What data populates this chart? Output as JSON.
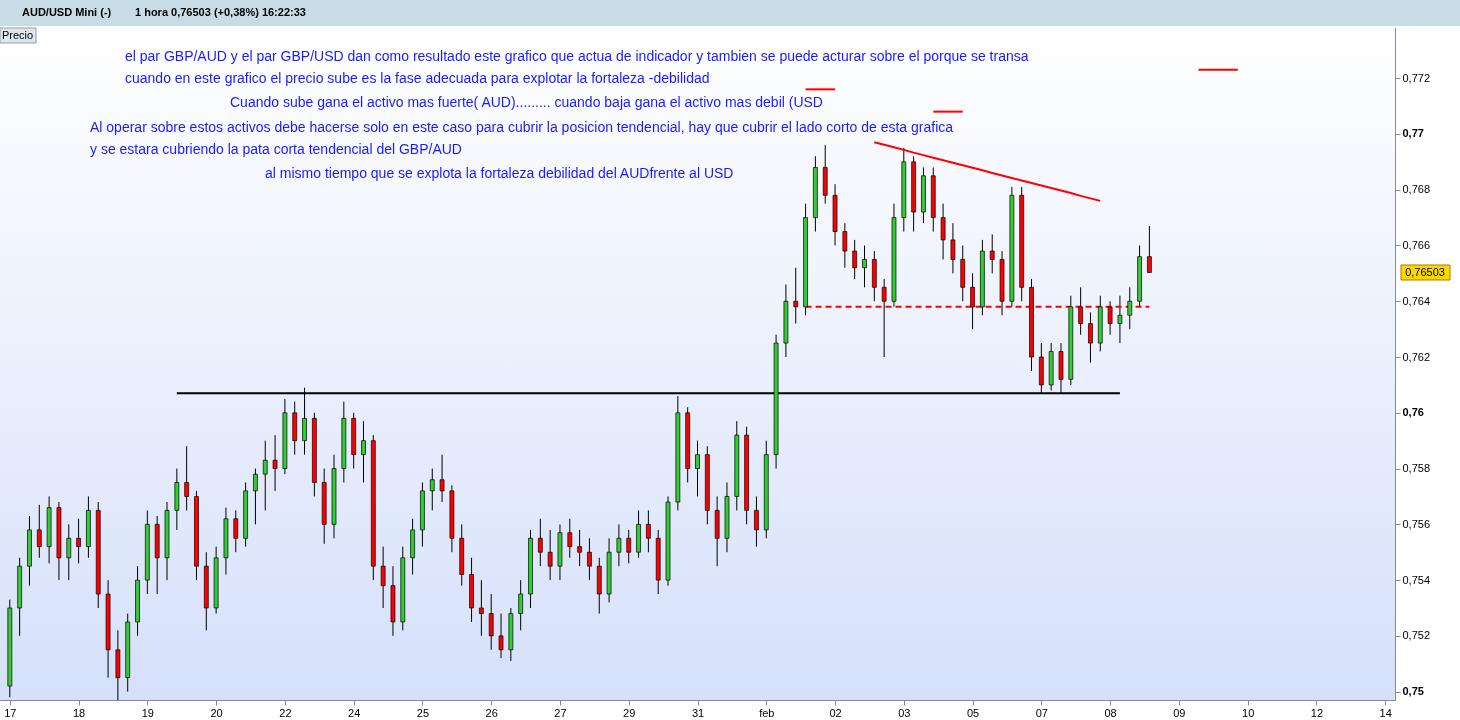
{
  "chart_data": {
    "type": "candlestick",
    "title": "AUD/USD Mini (-)",
    "subtitle": "1 hora   0,76503 (+0,38%)   16:22:33",
    "ylabel": "Precio",
    "categories": [
      "17",
      null,
      null,
      null,
      null,
      null,
      null,
      "18",
      null,
      null,
      null,
      null,
      null,
      null,
      "19",
      null,
      null,
      null,
      null,
      null,
      null,
      "20",
      null,
      null,
      null,
      null,
      null,
      null,
      "22",
      null,
      null,
      null,
      null,
      null,
      null,
      "24",
      null,
      null,
      null,
      null,
      null,
      null,
      "25",
      null,
      null,
      null,
      null,
      null,
      null,
      "26",
      null,
      null,
      null,
      null,
      null,
      null,
      "27",
      null,
      null,
      null,
      null,
      null,
      null,
      "29",
      null,
      null,
      null,
      null,
      null,
      null,
      "31",
      null,
      null,
      null,
      null,
      null,
      null,
      "feb",
      null,
      null,
      null,
      null,
      null,
      null,
      "02",
      null,
      null,
      null,
      null,
      null,
      null,
      "03",
      null,
      null,
      null,
      null,
      null,
      null,
      "05",
      null,
      null,
      null,
      null,
      null,
      null,
      "07",
      null,
      null,
      null,
      null,
      null,
      null,
      "08",
      null,
      null,
      null,
      null,
      null,
      null,
      "09",
      null,
      null,
      null,
      null,
      null,
      null,
      "10",
      null,
      null,
      null,
      null,
      null,
      null,
      "12",
      null,
      null,
      null,
      null,
      null,
      null,
      "14"
    ],
    "ohlc": [
      [
        0.7502,
        0.7533,
        0.7498,
        0.753
      ],
      [
        0.753,
        0.7548,
        0.752,
        0.7545
      ],
      [
        0.7545,
        0.7563,
        0.7538,
        0.7558
      ],
      [
        0.7558,
        0.7567,
        0.7548,
        0.7552
      ],
      [
        0.7552,
        0.757,
        0.7546,
        0.7566
      ],
      [
        0.7566,
        0.7568,
        0.754,
        0.7548
      ],
      [
        0.7548,
        0.756,
        0.754,
        0.7555
      ],
      [
        0.7555,
        0.7562,
        0.7546,
        0.7552
      ],
      [
        0.7552,
        0.757,
        0.7548,
        0.7565
      ],
      [
        0.7565,
        0.7568,
        0.753,
        0.7535
      ],
      [
        0.7535,
        0.754,
        0.7505,
        0.7515
      ],
      [
        0.7515,
        0.7522,
        0.7497,
        0.7505
      ],
      [
        0.7505,
        0.7528,
        0.75,
        0.7525
      ],
      [
        0.7525,
        0.7545,
        0.752,
        0.754
      ],
      [
        0.754,
        0.7565,
        0.7535,
        0.756
      ],
      [
        0.756,
        0.7563,
        0.7535,
        0.7548
      ],
      [
        0.7548,
        0.7568,
        0.754,
        0.7565
      ],
      [
        0.7565,
        0.758,
        0.7558,
        0.7575
      ],
      [
        0.7575,
        0.7588,
        0.7565,
        0.757
      ],
      [
        0.757,
        0.7572,
        0.754,
        0.7545
      ],
      [
        0.7545,
        0.755,
        0.7522,
        0.753
      ],
      [
        0.753,
        0.7552,
        0.7528,
        0.7548
      ],
      [
        0.7548,
        0.7566,
        0.7542,
        0.7562
      ],
      [
        0.7562,
        0.7565,
        0.755,
        0.7555
      ],
      [
        0.7555,
        0.7575,
        0.7552,
        0.7572
      ],
      [
        0.7572,
        0.758,
        0.756,
        0.7578
      ],
      [
        0.7578,
        0.759,
        0.7565,
        0.7583
      ],
      [
        0.7583,
        0.7592,
        0.7572,
        0.758
      ],
      [
        0.758,
        0.7605,
        0.7578,
        0.76
      ],
      [
        0.76,
        0.7604,
        0.7585,
        0.759
      ],
      [
        0.759,
        0.7609,
        0.7585,
        0.7598
      ],
      [
        0.7598,
        0.76,
        0.757,
        0.7575
      ],
      [
        0.7575,
        0.758,
        0.7553,
        0.756
      ],
      [
        0.756,
        0.7585,
        0.7555,
        0.758
      ],
      [
        0.758,
        0.7604,
        0.7575,
        0.7598
      ],
      [
        0.7598,
        0.76,
        0.758,
        0.7585
      ],
      [
        0.7585,
        0.7597,
        0.7575,
        0.759
      ],
      [
        0.759,
        0.7592,
        0.754,
        0.7545
      ],
      [
        0.7545,
        0.7552,
        0.753,
        0.7538
      ],
      [
        0.7538,
        0.7545,
        0.752,
        0.7525
      ],
      [
        0.7525,
        0.7552,
        0.7522,
        0.7548
      ],
      [
        0.7548,
        0.7562,
        0.7542,
        0.7558
      ],
      [
        0.7558,
        0.7575,
        0.7552,
        0.7572
      ],
      [
        0.7572,
        0.758,
        0.7565,
        0.7576
      ],
      [
        0.7576,
        0.7585,
        0.7568,
        0.7572
      ],
      [
        0.7572,
        0.7574,
        0.755,
        0.7555
      ],
      [
        0.7555,
        0.756,
        0.7538,
        0.7542
      ],
      [
        0.7542,
        0.7548,
        0.7525,
        0.753
      ],
      [
        0.753,
        0.754,
        0.752,
        0.7528
      ],
      [
        0.7528,
        0.7535,
        0.7515,
        0.752
      ],
      [
        0.752,
        0.7528,
        0.7512,
        0.7515
      ],
      [
        0.7515,
        0.753,
        0.7511,
        0.7528
      ],
      [
        0.7528,
        0.754,
        0.7522,
        0.7535
      ],
      [
        0.7535,
        0.7558,
        0.753,
        0.7555
      ],
      [
        0.7555,
        0.7562,
        0.7545,
        0.755
      ],
      [
        0.755,
        0.7558,
        0.754,
        0.7545
      ],
      [
        0.7545,
        0.756,
        0.754,
        0.7557
      ],
      [
        0.7557,
        0.7562,
        0.7548,
        0.7552
      ],
      [
        0.7552,
        0.7558,
        0.7545,
        0.755
      ],
      [
        0.755,
        0.7555,
        0.754,
        0.7545
      ],
      [
        0.7545,
        0.7548,
        0.7528,
        0.7535
      ],
      [
        0.7535,
        0.7555,
        0.7532,
        0.755
      ],
      [
        0.755,
        0.756,
        0.7545,
        0.7555
      ],
      [
        0.7555,
        0.7558,
        0.7546,
        0.755
      ],
      [
        0.755,
        0.7565,
        0.7548,
        0.756
      ],
      [
        0.756,
        0.7565,
        0.755,
        0.7555
      ],
      [
        0.7555,
        0.7558,
        0.7535,
        0.754
      ],
      [
        0.754,
        0.757,
        0.7538,
        0.7568
      ],
      [
        0.7568,
        0.7606,
        0.7565,
        0.76
      ],
      [
        0.76,
        0.7602,
        0.7575,
        0.758
      ],
      [
        0.758,
        0.759,
        0.757,
        0.7585
      ],
      [
        0.7585,
        0.7588,
        0.756,
        0.7565
      ],
      [
        0.7565,
        0.757,
        0.7545,
        0.7555
      ],
      [
        0.7555,
        0.7575,
        0.755,
        0.757
      ],
      [
        0.757,
        0.7597,
        0.7565,
        0.7592
      ],
      [
        0.7592,
        0.7595,
        0.756,
        0.7565
      ],
      [
        0.7565,
        0.757,
        0.7552,
        0.7558
      ],
      [
        0.7558,
        0.759,
        0.7555,
        0.7585
      ],
      [
        0.7585,
        0.7628,
        0.758,
        0.7625
      ],
      [
        0.7625,
        0.7646,
        0.762,
        0.764
      ],
      [
        0.764,
        0.7652,
        0.7632,
        0.7638
      ],
      [
        0.7638,
        0.7675,
        0.7635,
        0.767
      ],
      [
        0.767,
        0.7692,
        0.7665,
        0.7688
      ],
      [
        0.7688,
        0.7696,
        0.7675,
        0.7678
      ],
      [
        0.7678,
        0.7682,
        0.766,
        0.7665
      ],
      [
        0.7665,
        0.7668,
        0.7652,
        0.7658
      ],
      [
        0.7658,
        0.7662,
        0.7648,
        0.7652
      ],
      [
        0.7652,
        0.766,
        0.7645,
        0.7655
      ],
      [
        0.7655,
        0.7658,
        0.764,
        0.7645
      ],
      [
        0.7645,
        0.7648,
        0.762,
        0.764
      ],
      [
        0.764,
        0.7675,
        0.7638,
        0.767
      ],
      [
        0.767,
        0.7695,
        0.7665,
        0.769
      ],
      [
        0.769,
        0.7692,
        0.7665,
        0.7672
      ],
      [
        0.7672,
        0.7688,
        0.7668,
        0.7685
      ],
      [
        0.7685,
        0.7688,
        0.7665,
        0.767
      ],
      [
        0.767,
        0.7675,
        0.7655,
        0.7662
      ],
      [
        0.7662,
        0.7668,
        0.765,
        0.7655
      ],
      [
        0.7655,
        0.766,
        0.764,
        0.7645
      ],
      [
        0.7645,
        0.765,
        0.763,
        0.7638
      ],
      [
        0.7638,
        0.7662,
        0.7635,
        0.7658
      ],
      [
        0.7658,
        0.7664,
        0.765,
        0.7655
      ],
      [
        0.7655,
        0.7658,
        0.7635,
        0.764
      ],
      [
        0.764,
        0.7681,
        0.7638,
        0.7678
      ],
      [
        0.7678,
        0.7681,
        0.764,
        0.7645
      ],
      [
        0.7645,
        0.7648,
        0.7615,
        0.762
      ],
      [
        0.762,
        0.7625,
        0.7607,
        0.761
      ],
      [
        0.761,
        0.7625,
        0.7608,
        0.7622
      ],
      [
        0.7622,
        0.7625,
        0.7607,
        0.7612
      ],
      [
        0.7612,
        0.7642,
        0.761,
        0.7638
      ],
      [
        0.7638,
        0.7645,
        0.7628,
        0.7632
      ],
      [
        0.7632,
        0.7636,
        0.7618,
        0.7625
      ],
      [
        0.7625,
        0.7642,
        0.7622,
        0.7638
      ],
      [
        0.7638,
        0.764,
        0.7628,
        0.7632
      ],
      [
        0.7632,
        0.7642,
        0.7625,
        0.7635
      ],
      [
        0.7635,
        0.7645,
        0.763,
        0.764
      ],
      [
        0.764,
        0.766,
        0.7638,
        0.7656
      ],
      [
        0.7656,
        0.7667,
        0.76503,
        0.76503
      ],
      null,
      null,
      null,
      null,
      null,
      null,
      null,
      null,
      null,
      null,
      null,
      null,
      null,
      null,
      null,
      null,
      null,
      null,
      null,
      null,
      null,
      null,
      null,
      null
    ],
    "series": [
      {
        "type": "line",
        "color": "#000000",
        "line_style": "solid",
        "values": [
          null,
          null,
          null,
          null,
          null,
          null,
          null,
          null,
          null,
          null,
          null,
          null,
          null,
          null,
          null,
          null,
          null,
          0.7607,
          0.7607,
          0.7607,
          0.7607,
          0.7607,
          0.7607,
          0.7607,
          0.7607,
          0.7607,
          0.7607,
          0.7607,
          0.7607,
          0.7607,
          0.7607,
          0.7607,
          0.7607,
          0.7607,
          0.7607,
          0.7607,
          0.7607,
          0.7607,
          0.7607,
          0.7607,
          0.7607,
          0.7607,
          0.7607,
          0.7607,
          0.7607,
          0.7607,
          0.7607,
          0.7607,
          0.7607,
          0.7607,
          0.7607,
          0.7607,
          0.7607,
          0.7607,
          0.7607,
          0.7607,
          0.7607,
          0.7607,
          0.7607,
          0.7607,
          0.7607,
          0.7607,
          0.7607,
          0.7607,
          0.7607,
          0.7607,
          0.7607,
          0.7607,
          0.7607,
          0.7607,
          0.7607,
          0.7607,
          0.7607,
          0.7607,
          0.7607,
          0.7607,
          0.7607,
          0.7607,
          0.7607,
          0.7607,
          0.7607,
          0.7607,
          0.7607,
          0.7607,
          0.7607,
          0.7607,
          0.7607,
          0.7607,
          0.7607,
          0.7607,
          0.7607,
          0.7607,
          0.7607,
          0.7607,
          0.7607,
          0.7607,
          0.7607,
          0.7607,
          0.7607,
          0.7607,
          0.7607,
          0.7607,
          0.7607,
          0.7607,
          0.7607,
          0.7607,
          0.7607,
          0.7607,
          0.7607,
          0.7607,
          0.7607,
          0.7607,
          0.7607,
          0.7607,
          null,
          null,
          null,
          null,
          null,
          null,
          null,
          null,
          null,
          null,
          null,
          null,
          null,
          null,
          null,
          null,
          null,
          null,
          null,
          null,
          null,
          null,
          null,
          null,
          null,
          null,
          null
        ]
      },
      {
        "type": "line",
        "color": "#ff0000",
        "line_style": "solid",
        "values": [
          null,
          null,
          null,
          null,
          null,
          null,
          null,
          null,
          null,
          null,
          null,
          null,
          null,
          null,
          null,
          null,
          null,
          null,
          null,
          null,
          null,
          null,
          null,
          null,
          null,
          null,
          null,
          null,
          null,
          null,
          null,
          null,
          null,
          null,
          null,
          null,
          null,
          null,
          null,
          null,
          null,
          null,
          null,
          null,
          null,
          null,
          null,
          null,
          null,
          null,
          null,
          null,
          null,
          null,
          null,
          null,
          null,
          null,
          null,
          null,
          null,
          null,
          null,
          null,
          null,
          null,
          null,
          null,
          null,
          null,
          null,
          null,
          null,
          null,
          null,
          null,
          null,
          null,
          null,
          null,
          null,
          null,
          null,
          null,
          null,
          null,
          null,
          null,
          0.7697,
          0.76961,
          0.76952,
          0.76943,
          0.76933,
          0.76924,
          0.76915,
          0.76906,
          0.76897,
          0.76888,
          0.76879,
          0.7687,
          0.7686,
          0.76851,
          0.76842,
          0.76833,
          0.76824,
          0.76815,
          0.76806,
          0.76797,
          0.76788,
          0.76778,
          0.76769,
          0.7676,
          null,
          null,
          null,
          null,
          null,
          null,
          null,
          null,
          null,
          null,
          null,
          null,
          null,
          null,
          null,
          null,
          null,
          null,
          null,
          null,
          null,
          null,
          null,
          null,
          null,
          null,
          null,
          null,
          null
        ]
      },
      {
        "type": "line",
        "color": "#ff0000",
        "line_style": "dashed",
        "values": [
          null,
          null,
          null,
          null,
          null,
          null,
          null,
          null,
          null,
          null,
          null,
          null,
          null,
          null,
          null,
          null,
          null,
          null,
          null,
          null,
          null,
          null,
          null,
          null,
          null,
          null,
          null,
          null,
          null,
          null,
          null,
          null,
          null,
          null,
          null,
          null,
          null,
          null,
          null,
          null,
          null,
          null,
          null,
          null,
          null,
          null,
          null,
          null,
          null,
          null,
          null,
          null,
          null,
          null,
          null,
          null,
          null,
          null,
          null,
          null,
          null,
          null,
          null,
          null,
          null,
          null,
          null,
          null,
          null,
          null,
          null,
          null,
          null,
          null,
          null,
          null,
          null,
          null,
          null,
          null,
          null,
          0.7638,
          0.7638,
          0.7638,
          0.7638,
          0.7638,
          0.7638,
          0.7638,
          0.7638,
          0.7638,
          0.7638,
          0.7638,
          0.7638,
          0.7638,
          0.7638,
          0.7638,
          0.7638,
          0.7638,
          0.7638,
          0.7638,
          0.7638,
          0.7638,
          0.7638,
          0.7638,
          0.7638,
          0.7638,
          0.7638,
          0.7638,
          0.7638,
          0.7638,
          0.7638,
          0.7638,
          0.7638,
          0.7638,
          0.7638,
          0.7638,
          0.7638,
          null,
          null,
          null,
          null,
          null,
          null,
          null,
          null,
          null,
          null,
          null,
          null,
          null,
          null,
          null,
          null,
          null,
          null,
          null,
          null,
          null,
          null,
          null,
          null
        ]
      },
      {
        "type": "line",
        "color": "#ff0000",
        "line_style": "solid",
        "values": [
          null,
          null,
          null,
          null,
          null,
          null,
          null,
          null,
          null,
          null,
          null,
          null,
          null,
          null,
          null,
          null,
          null,
          null,
          null,
          null,
          null,
          null,
          null,
          null,
          null,
          null,
          null,
          null,
          null,
          null,
          null,
          null,
          null,
          null,
          null,
          null,
          null,
          null,
          null,
          null,
          null,
          null,
          null,
          null,
          null,
          null,
          null,
          null,
          null,
          null,
          null,
          null,
          null,
          null,
          null,
          null,
          null,
          null,
          null,
          null,
          null,
          null,
          null,
          null,
          null,
          null,
          null,
          null,
          null,
          null,
          null,
          null,
          null,
          null,
          null,
          null,
          null,
          null,
          null,
          null,
          null,
          null,
          null,
          null,
          null,
          null,
          null,
          null,
          null,
          null,
          null,
          null,
          null,
          null,
          null,
          null,
          null,
          null,
          null,
          null,
          null,
          null,
          null,
          null,
          null,
          null,
          null,
          null,
          null,
          null,
          null,
          null,
          null,
          null,
          null,
          null,
          null,
          null,
          null,
          null,
          null,
          0.7723,
          0.7723,
          0.7723,
          0.7723,
          0.7723,
          null,
          null,
          null,
          null,
          null,
          null,
          null,
          null,
          null,
          null,
          null,
          null,
          null,
          null,
          null
        ]
      },
      {
        "type": "line",
        "color": "#ff0000",
        "line_style": "solid",
        "values": [
          null,
          null,
          null,
          null,
          null,
          null,
          null,
          null,
          null,
          null,
          null,
          null,
          null,
          null,
          null,
          null,
          null,
          null,
          null,
          null,
          null,
          null,
          null,
          null,
          null,
          null,
          null,
          null,
          null,
          null,
          null,
          null,
          null,
          null,
          null,
          null,
          null,
          null,
          null,
          null,
          null,
          null,
          null,
          null,
          null,
          null,
          null,
          null,
          null,
          null,
          null,
          null,
          null,
          null,
          null,
          null,
          null,
          null,
          null,
          null,
          null,
          null,
          null,
          null,
          null,
          null,
          null,
          null,
          null,
          null,
          null,
          null,
          null,
          null,
          null,
          null,
          null,
          null,
          null,
          null,
          null,
          0.7716,
          0.7716,
          0.7716,
          0.7716,
          null,
          null,
          null,
          null,
          null,
          null,
          null,
          null,
          null,
          null,
          null,
          null,
          null,
          null,
          null,
          null,
          null,
          null,
          null,
          null,
          null,
          null,
          null,
          null,
          null,
          null,
          null,
          null,
          null,
          null,
          null,
          null,
          null,
          null,
          null,
          null,
          null,
          null,
          null,
          null,
          null,
          null,
          null,
          null,
          null,
          null,
          null,
          null,
          null,
          null,
          null,
          null,
          null,
          null,
          null,
          null
        ]
      },
      {
        "type": "line",
        "color": "#ff0000",
        "line_style": "solid",
        "values": [
          null,
          null,
          null,
          null,
          null,
          null,
          null,
          null,
          null,
          null,
          null,
          null,
          null,
          null,
          null,
          null,
          null,
          null,
          null,
          null,
          null,
          null,
          null,
          null,
          null,
          null,
          null,
          null,
          null,
          null,
          null,
          null,
          null,
          null,
          null,
          null,
          null,
          null,
          null,
          null,
          null,
          null,
          null,
          null,
          null,
          null,
          null,
          null,
          null,
          null,
          null,
          null,
          null,
          null,
          null,
          null,
          null,
          null,
          null,
          null,
          null,
          null,
          null,
          null,
          null,
          null,
          null,
          null,
          null,
          null,
          null,
          null,
          null,
          null,
          null,
          null,
          null,
          null,
          null,
          null,
          null,
          null,
          null,
          null,
          null,
          null,
          null,
          null,
          null,
          null,
          null,
          null,
          null,
          null,
          0.7708,
          0.7708,
          0.7708,
          0.7708,
          null,
          null,
          null,
          null,
          null,
          null,
          null,
          null,
          null,
          null,
          null,
          null,
          null,
          null,
          null,
          null,
          null,
          null,
          null,
          null,
          null,
          null,
          null,
          null,
          null,
          null,
          null,
          null,
          null,
          null,
          null,
          null,
          null,
          null,
          null,
          null,
          null,
          null,
          null,
          null,
          null,
          null,
          null
        ]
      }
    ],
    "annotations": [
      "el par GBP/AUD  y el par  GBP/USD  dan como resultado este grafico que actua de indicador y tambien se puede acturar sobre el porque se transa",
      "cuando en este grafico el precio sube es la fase adecuada para explotar la fortaleza -debilidad",
      "Cuando sube gana el activo mas fuerte( AUD)......... cuando baja gana el activo mas debil (USD",
      "Al operar sobre estos activos debe hacerse solo en este caso para cubrir la posicion tendencial, hay que cubrir el lado corto de esta grafica",
      "y se estara cubriendo la pata corta  tendencial del GBP/AUD",
      "al mismo tiempo que se explota la fortaleza debilidad del AUDfrente al USD",
      "0,76503"
    ],
    "ylim": [
      0.7497,
      0.7738
    ],
    "yticks": [
      {
        "value": 0.75,
        "label": "0,75"
      },
      {
        "value": 0.752,
        "label": "0,752"
      },
      {
        "value": 0.754,
        "label": "0,754"
      },
      {
        "value": 0.756,
        "label": "0,756"
      },
      {
        "value": 0.758,
        "label": "0,758"
      },
      {
        "value": 0.76,
        "label": "0,76"
      },
      {
        "value": 0.762,
        "label": "0,762"
      },
      {
        "value": 0.764,
        "label": "0,764"
      },
      {
        "value": 0.766,
        "label": "0,766"
      },
      {
        "value": 0.768,
        "label": "0,768"
      },
      {
        "value": 0.77,
        "label": "0,77"
      },
      {
        "value": 0.772,
        "label": "0,772"
      }
    ]
  }
}
